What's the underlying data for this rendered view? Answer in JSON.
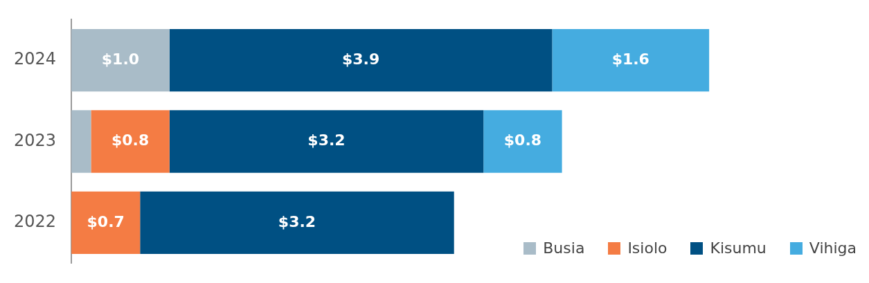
{
  "chart_data": {
    "type": "bar",
    "orientation": "horizontal",
    "stacked": true,
    "categories": [
      "2024",
      "2023",
      "2022"
    ],
    "series": [
      {
        "name": "Busia",
        "color": "#a9bcc8",
        "values": [
          1.0,
          0.2,
          null
        ],
        "value_labels": [
          "$1.0",
          null,
          null
        ]
      },
      {
        "name": "Isiolo",
        "color": "#f47c44",
        "values": [
          null,
          0.8,
          0.7
        ],
        "value_labels": [
          null,
          "$0.8",
          "$0.7"
        ]
      },
      {
        "name": "Kisumu",
        "color": "#005083",
        "values": [
          3.9,
          3.2,
          3.2
        ],
        "value_labels": [
          "$3.9",
          "$3.2",
          "$3.2"
        ]
      },
      {
        "name": "Vihiga",
        "color": "#45ace0",
        "values": [
          1.6,
          0.8,
          null
        ],
        "value_labels": [
          "$1.6",
          "$0.8",
          null
        ]
      }
    ],
    "legend": "bottom right"
  }
}
